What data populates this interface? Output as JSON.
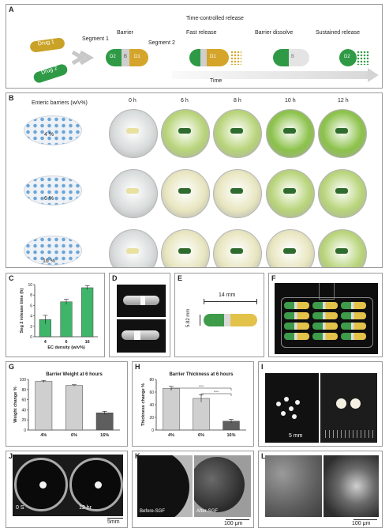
{
  "panelA": {
    "label": "A",
    "drug1": "Drug 1",
    "drug2": "Drug 2",
    "segment1": "Segment 1",
    "barrier": "Barrier",
    "segment2": "Segment 2",
    "time_controlled": "Time-controlled release",
    "fast_release": "Fast release",
    "barrier_dissolve": "Barrier dissolve",
    "sustained_release": "Sustained release",
    "time": "Time",
    "cap_D2": "D2",
    "cap_B": "B",
    "cap_D1": "D1"
  },
  "panelB": {
    "label": "B",
    "title": "Enteric barriers (w/v%)",
    "times": [
      "0 h",
      "6 h",
      "8 h",
      "10 h",
      "12 h"
    ],
    "rows": [
      "4 %",
      "6 %",
      "16 %"
    ],
    "colors": {
      "clear": "#d9dcdc",
      "yellow": "#e8e6c0",
      "lightgreen": "#b8d47a",
      "green": "#8cc24a"
    }
  },
  "panelC": {
    "label": "C",
    "chart_data": {
      "type": "bar",
      "categories": [
        "4",
        "6",
        "16"
      ],
      "values": [
        3.3,
        6.7,
        9.4
      ],
      "errors": [
        0.8,
        0.5,
        0.4
      ],
      "xlabel": "EC density (w/v%)",
      "ylabel": "Seg 2 release time (h)",
      "ylim": [
        0,
        10
      ],
      "yticks": [
        "0",
        "2",
        "4",
        "6",
        "8",
        "10"
      ],
      "color": "#3fb56a"
    }
  },
  "panelD": {
    "label": "D"
  },
  "panelE": {
    "label": "E",
    "length": "14 mm",
    "width": "5.82 mm"
  },
  "panelF": {
    "label": "F"
  },
  "panelG": {
    "label": "G",
    "chart_data": {
      "type": "bar",
      "title": "Barrier Weight at 6 hours",
      "categories": [
        "4%",
        "6%",
        "16%"
      ],
      "values": [
        96,
        88,
        34
      ],
      "errors": [
        2,
        1.5,
        3
      ],
      "ylabel": "Weight change %",
      "ylim": [
        0,
        100
      ],
      "yticks": [
        "0",
        "20",
        "40",
        "60",
        "80",
        "100"
      ]
    }
  },
  "panelH": {
    "label": "H",
    "chart_data": {
      "type": "bar",
      "title": "Barrier Thickness at 6 hours",
      "categories": [
        "4%",
        "6%",
        "16%"
      ],
      "values": [
        66,
        50,
        14
      ],
      "errors": [
        3,
        6,
        3
      ],
      "ylabel": "Thickness change %",
      "ylim": [
        0,
        80
      ],
      "yticks": [
        "0",
        "20",
        "40",
        "60",
        "80"
      ],
      "sig1": "****",
      "sig2": "****"
    }
  },
  "panelI": {
    "label": "I",
    "scale": "5 mm"
  },
  "panelJ": {
    "label": "J",
    "left": "0 S",
    "right": "12 hr",
    "scale": "5mm"
  },
  "panelK": {
    "label": "K",
    "left": "Before-SGF",
    "right": "After-SGF",
    "scale": "100 μm"
  },
  "panelL": {
    "label": "L",
    "scale": "100 μm"
  }
}
